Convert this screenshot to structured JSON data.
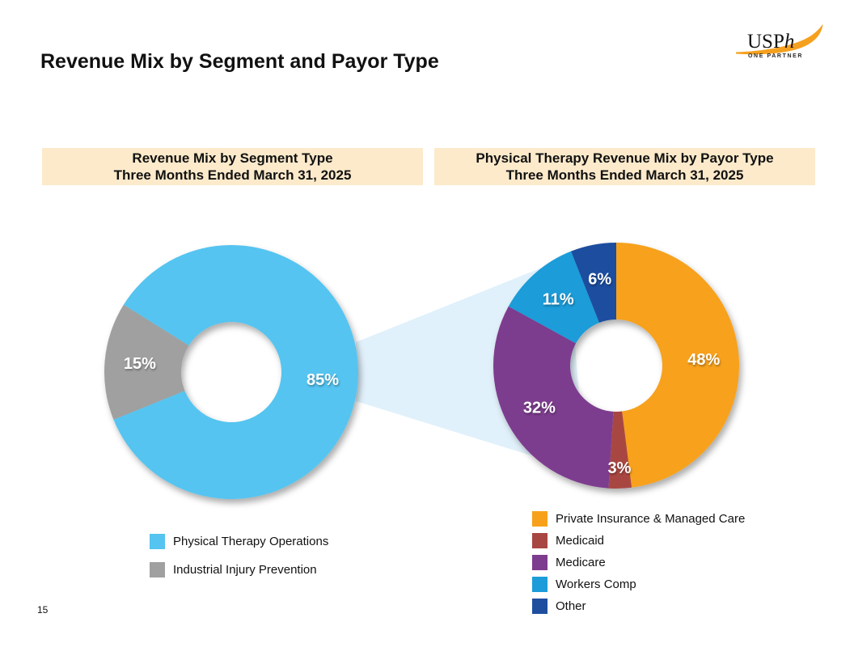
{
  "page": {
    "title": "Revenue Mix by Segment and Payor Type",
    "page_number": "15"
  },
  "logo": {
    "name": "USP",
    "name_italic": "h",
    "tagline": "ONE PARTNER",
    "swoosh_color": "#F5A01E"
  },
  "colors": {
    "background": "#FFFFFF",
    "header_band_bg": "#FCEACB",
    "beam_connector": "#E1F1FB",
    "slice_label_text": "#FFFFFF"
  },
  "chart_data": [
    {
      "type": "pie",
      "style": "donut",
      "title": "Revenue Mix by Segment Type",
      "subtitle": "Three Months Ended March 31, 2025",
      "start_angle_deg_clockwise_from_top": -58,
      "legend_position": "bottom-left",
      "slices": [
        {
          "label": "Physical Therapy Operations",
          "value_pct": 85,
          "color": "#55C4F0"
        },
        {
          "label": "Industrial Injury Prevention",
          "value_pct": 15,
          "color": "#A0A0A0"
        }
      ]
    },
    {
      "type": "pie",
      "style": "donut",
      "title": "Physical Therapy Revenue Mix by Payor Type",
      "subtitle": "Three Months Ended March 31, 2025",
      "start_angle_deg_clockwise_from_top": 0,
      "legend_position": "bottom-right",
      "slices": [
        {
          "label": "Private Insurance & Managed Care",
          "value_pct": 48,
          "color": "#F7A11A"
        },
        {
          "label": "Medicaid",
          "value_pct": 3,
          "color": "#A84642"
        },
        {
          "label": "Medicare",
          "value_pct": 32,
          "color": "#7D3C8E"
        },
        {
          "label": "Workers Comp",
          "value_pct": 11,
          "color": "#1C9CD9"
        },
        {
          "label": "Other",
          "value_pct": 6,
          "color": "#1F4E9F"
        }
      ]
    }
  ]
}
